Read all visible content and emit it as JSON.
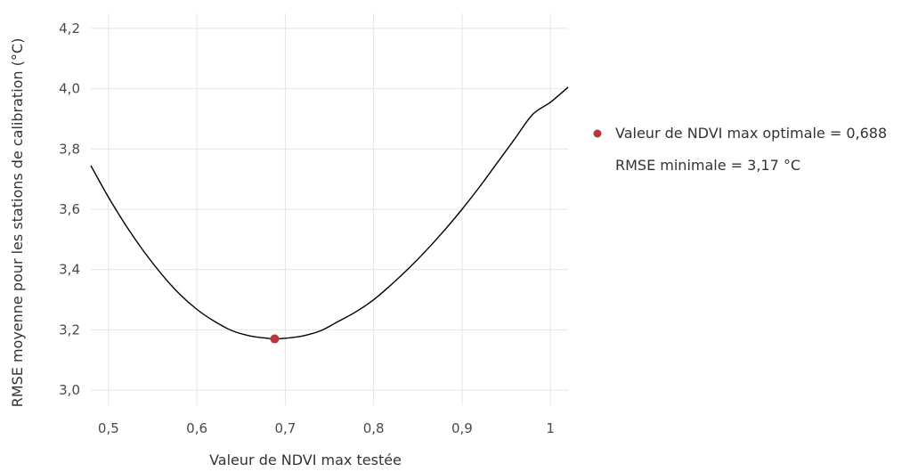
{
  "chart_data": {
    "type": "line",
    "xlabel": "Valeur de NDVI max testée",
    "ylabel": "RMSE moyenne pour les stations de calibration (°C)",
    "xlim": [
      0.48,
      1.02
    ],
    "ylim": [
      2.95,
      4.25
    ],
    "x_ticks": [
      0.5,
      0.6,
      0.7,
      0.8,
      0.9,
      1
    ],
    "x_tick_labels": [
      "0,5",
      "0,6",
      "0,7",
      "0,8",
      "0,9",
      "1"
    ],
    "y_ticks": [
      3.0,
      3.2,
      3.4,
      3.6,
      3.8,
      4.0,
      4.2
    ],
    "y_tick_labels": [
      "3,0",
      "3,2",
      "3,4",
      "3,6",
      "3,8",
      "4,0",
      "4,2"
    ],
    "grid": true,
    "series": [
      {
        "color": "#000000",
        "x": [
          0.48,
          0.5,
          0.52,
          0.54,
          0.56,
          0.58,
          0.6,
          0.62,
          0.64,
          0.66,
          0.68,
          0.688,
          0.7,
          0.72,
          0.74,
          0.76,
          0.78,
          0.8,
          0.82,
          0.84,
          0.86,
          0.88,
          0.9,
          0.92,
          0.94,
          0.96,
          0.98,
          1.0,
          1.02
        ],
        "y": [
          3.745,
          3.64,
          3.545,
          3.46,
          3.385,
          3.32,
          3.268,
          3.228,
          3.197,
          3.18,
          3.172,
          3.17,
          3.172,
          3.18,
          3.197,
          3.228,
          3.26,
          3.3,
          3.35,
          3.405,
          3.465,
          3.53,
          3.6,
          3.675,
          3.755,
          3.835,
          3.915,
          3.955,
          4.005
        ]
      }
    ],
    "optimum": {
      "x": 0.688,
      "y": 3.17,
      "color": "#b5383f"
    },
    "legend": {
      "placement": "right",
      "line1": "Valeur de NDVI max optimale = 0,688",
      "line2": "RMSE minimale = 3,17 °C",
      "marker_color": "#b5383f"
    }
  }
}
